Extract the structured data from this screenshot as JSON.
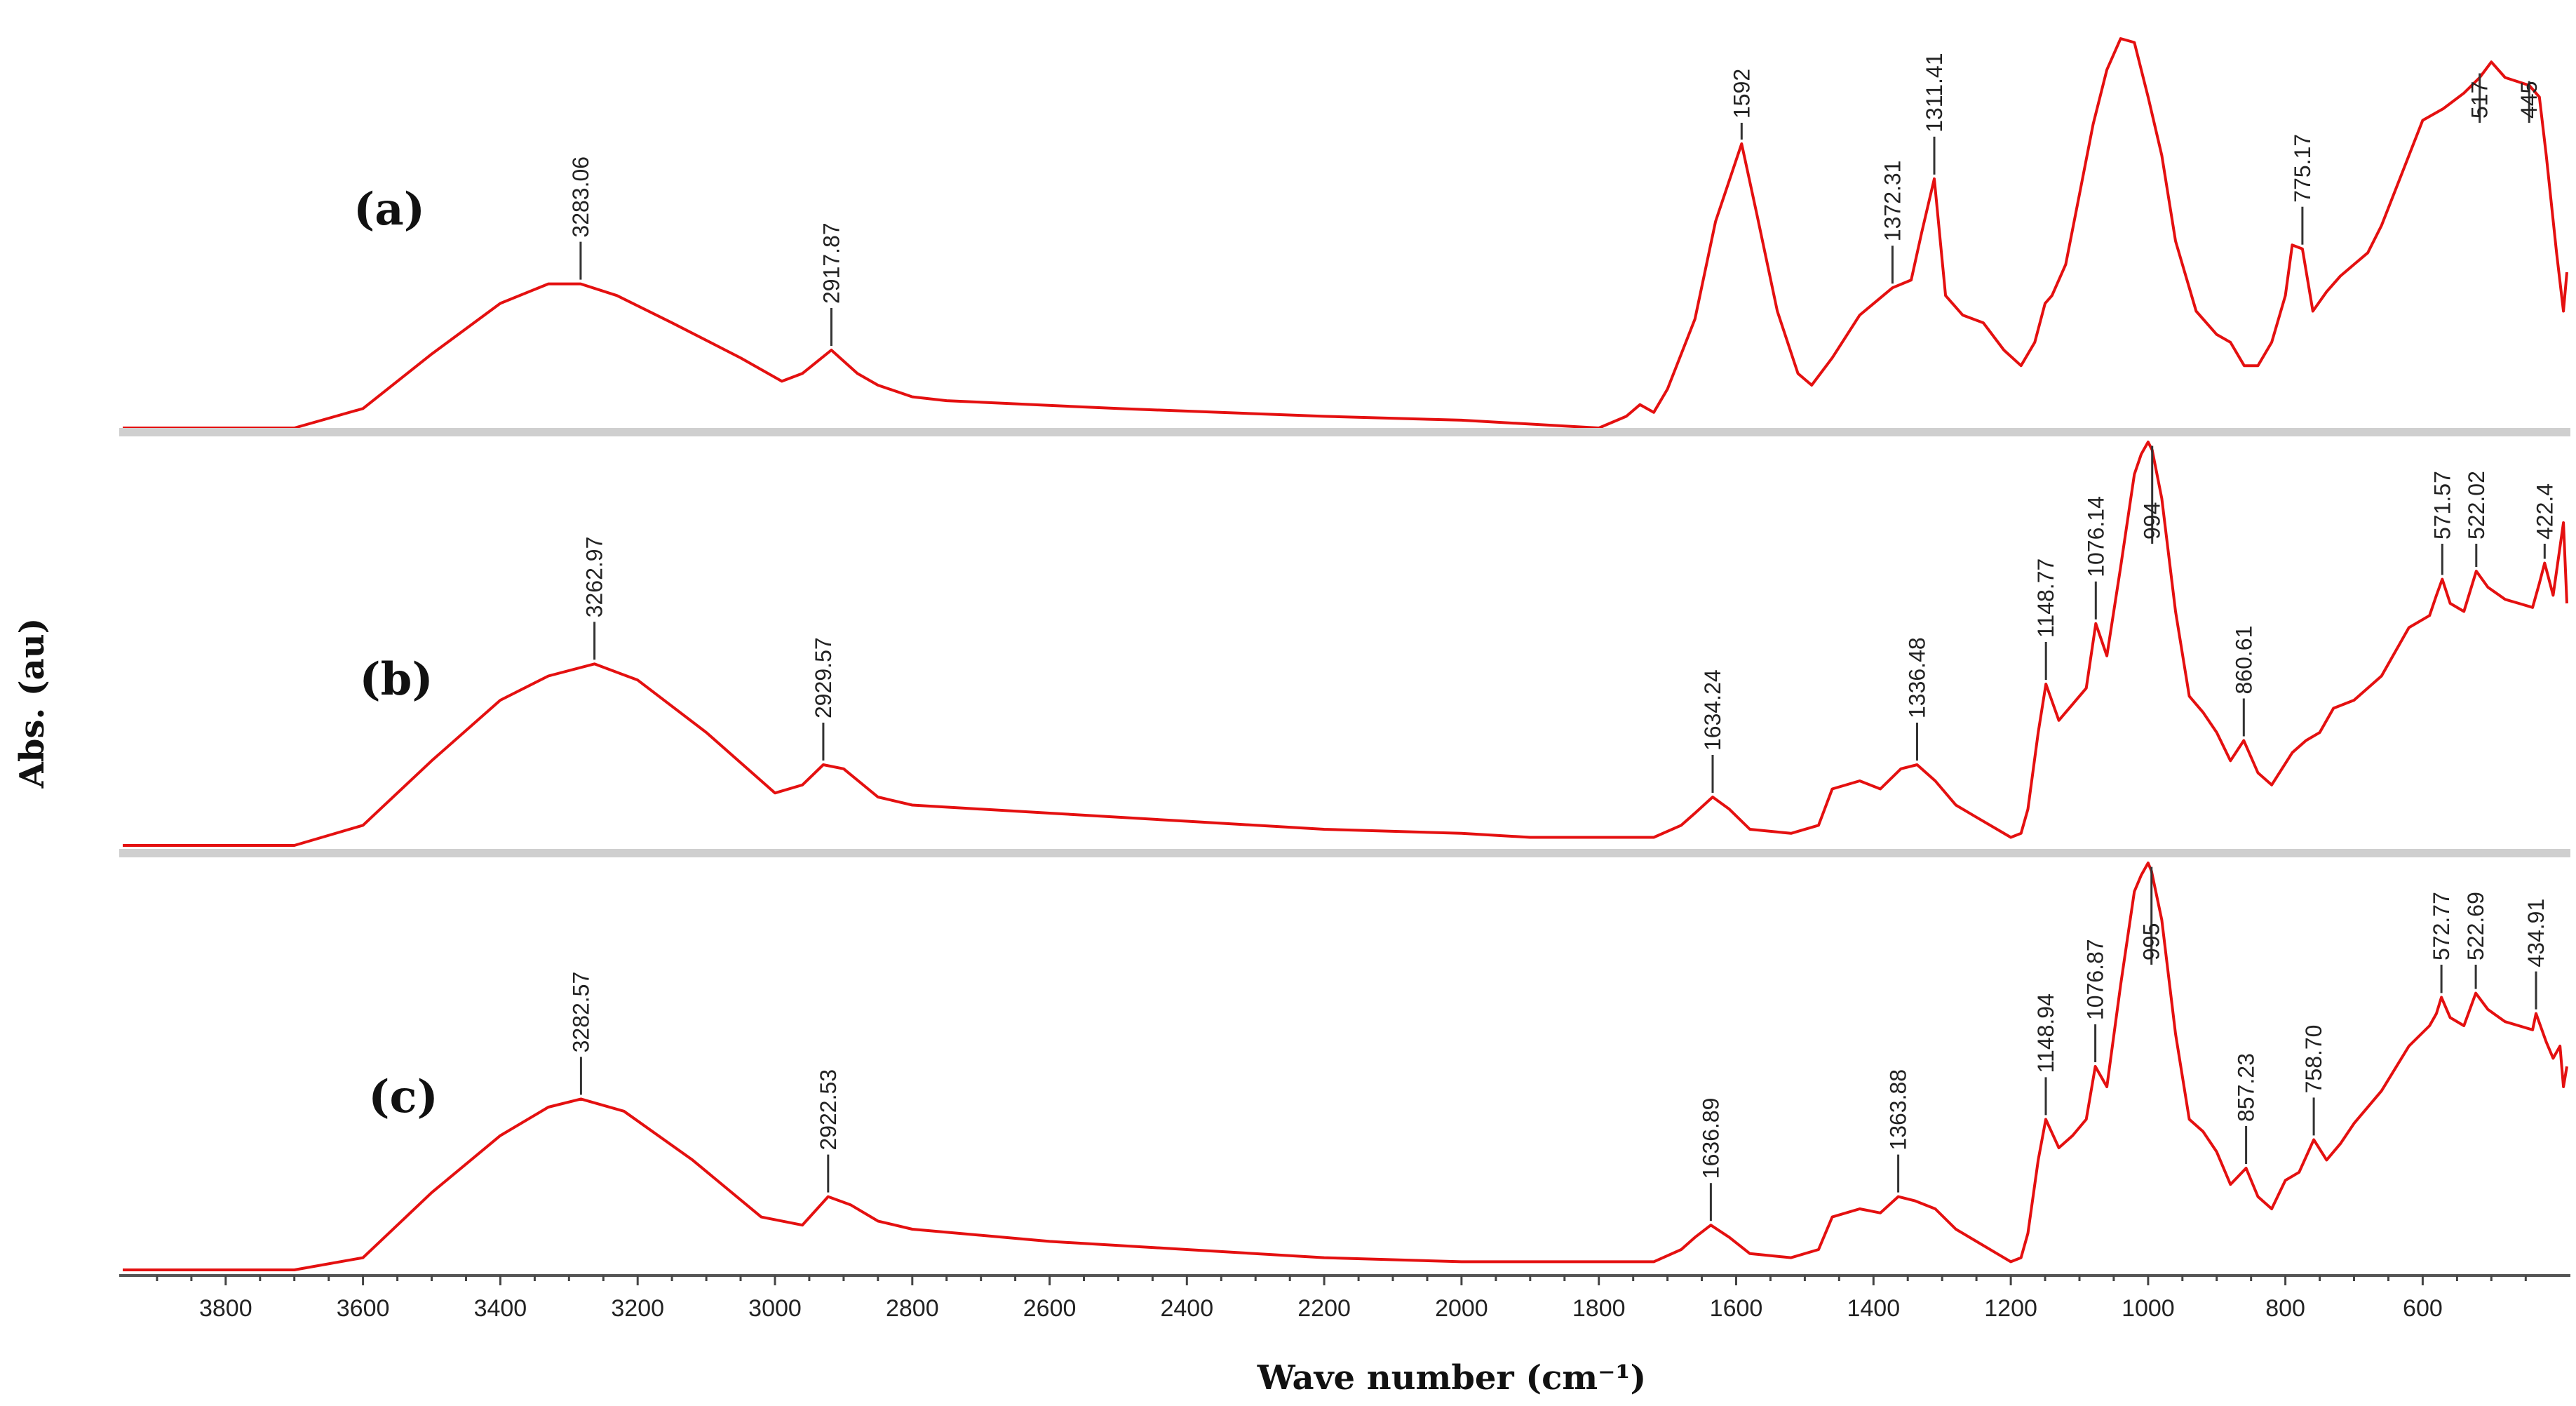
{
  "chart_data": {
    "type": "line",
    "title": "",
    "xlabel": "Wave number (cm⁻¹)",
    "ylabel": "Abs. (au)",
    "x_reversed": true,
    "xlim": [
      3950,
      390
    ],
    "x_ticks": [
      3800,
      3600,
      3400,
      3200,
      3000,
      2800,
      2600,
      2400,
      2200,
      2000,
      1800,
      1600,
      1400,
      1200,
      1000,
      800,
      600
    ],
    "x_tick_labels": [
      "3800",
      "3600",
      "3400",
      "3200",
      "3000",
      "2800",
      "2600",
      "2400",
      "2200",
      "2000",
      "1800",
      "1600",
      "1400",
      "1200",
      "1000",
      "800",
      "600"
    ],
    "color": "#e41010",
    "series": [
      {
        "name": "(a)",
        "label": "(a)",
        "x": [
          3950,
          3700,
          3600,
          3500,
          3400,
          3330,
          3283,
          3230,
          3150,
          3050,
          2990,
          2960,
          2917.87,
          2880,
          2850,
          2800,
          2750,
          2500,
          2200,
          2000,
          1800,
          1760,
          1740,
          1720,
          1700,
          1660,
          1630,
          1592,
          1570,
          1540,
          1510,
          1490,
          1460,
          1420,
          1372.31,
          1345,
          1330,
          1311.41,
          1295,
          1270,
          1240,
          1210,
          1185,
          1165,
          1150,
          1140,
          1120,
          1100,
          1080,
          1060,
          1040,
          1020,
          1000,
          980,
          960,
          930,
          900,
          880,
          860,
          840,
          820,
          800,
          790,
          775.17,
          760,
          740,
          720,
          700,
          680,
          660,
          640,
          600,
          570,
          540,
          517,
          500,
          480,
          445,
          430,
          420,
          405,
          395,
          390
        ],
        "y": [
          0.0,
          0.0,
          0.05,
          0.19,
          0.32,
          0.37,
          0.37,
          0.34,
          0.27,
          0.18,
          0.12,
          0.14,
          0.2,
          0.14,
          0.11,
          0.08,
          0.07,
          0.05,
          0.03,
          0.02,
          0.0,
          0.03,
          0.06,
          0.04,
          0.1,
          0.28,
          0.53,
          0.73,
          0.55,
          0.3,
          0.14,
          0.11,
          0.18,
          0.29,
          0.36,
          0.38,
          0.5,
          0.64,
          0.34,
          0.29,
          0.27,
          0.2,
          0.16,
          0.22,
          0.32,
          0.34,
          0.42,
          0.6,
          0.78,
          0.92,
          1.0,
          0.99,
          0.85,
          0.7,
          0.48,
          0.3,
          0.24,
          0.22,
          0.16,
          0.16,
          0.22,
          0.34,
          0.47,
          0.46,
          0.3,
          0.35,
          0.39,
          0.42,
          0.45,
          0.52,
          0.61,
          0.79,
          0.82,
          0.86,
          0.9,
          0.94,
          0.9,
          0.88,
          0.85,
          0.7,
          0.45,
          0.3,
          0.4
        ],
        "peaks": [
          {
            "label": "3283.06",
            "x": 3283
          },
          {
            "label": "2917.87",
            "x": 2917.87
          },
          {
            "label": "1592",
            "x": 1592
          },
          {
            "label": "1372.31",
            "x": 1372.31
          },
          {
            "label": "1311.41",
            "x": 1311.41
          },
          {
            "label": "775.17",
            "x": 775.17
          },
          {
            "label": "517",
            "x": 517
          },
          {
            "label": "445",
            "x": 445
          }
        ]
      },
      {
        "name": "(b)",
        "label": "(b)",
        "x": [
          3950,
          3700,
          3600,
          3500,
          3400,
          3330,
          3262.97,
          3200,
          3100,
          3000,
          2960,
          2929.57,
          2900,
          2850,
          2800,
          2600,
          2400,
          2200,
          2000,
          1900,
          1800,
          1720,
          1680,
          1660,
          1634.24,
          1610,
          1580,
          1520,
          1480,
          1460,
          1420,
          1390,
          1360,
          1336.48,
          1310,
          1280,
          1250,
          1220,
          1200,
          1185,
          1175,
          1160,
          1148.77,
          1130,
          1110,
          1090,
          1076.14,
          1060,
          1040,
          1020,
          1010,
          1000,
          994,
          980,
          960,
          940,
          920,
          900,
          880,
          860.61,
          840,
          820,
          790,
          770,
          750,
          730,
          700,
          660,
          620,
          590,
          580,
          571.57,
          560,
          540,
          522.02,
          505,
          480,
          460,
          440,
          430,
          422.4,
          410,
          400,
          395,
          390
        ],
        "y": [
          0.0,
          0.0,
          0.05,
          0.21,
          0.36,
          0.42,
          0.45,
          0.41,
          0.28,
          0.13,
          0.15,
          0.2,
          0.19,
          0.12,
          0.1,
          0.08,
          0.06,
          0.04,
          0.03,
          0.02,
          0.02,
          0.02,
          0.05,
          0.08,
          0.12,
          0.09,
          0.04,
          0.03,
          0.05,
          0.14,
          0.16,
          0.14,
          0.19,
          0.2,
          0.16,
          0.1,
          0.07,
          0.04,
          0.02,
          0.03,
          0.09,
          0.28,
          0.4,
          0.31,
          0.35,
          0.39,
          0.55,
          0.47,
          0.69,
          0.92,
          0.97,
          1.0,
          0.98,
          0.86,
          0.58,
          0.37,
          0.33,
          0.28,
          0.21,
          0.26,
          0.18,
          0.15,
          0.23,
          0.26,
          0.28,
          0.34,
          0.36,
          0.42,
          0.54,
          0.57,
          0.62,
          0.66,
          0.6,
          0.58,
          0.68,
          0.64,
          0.61,
          0.6,
          0.59,
          0.65,
          0.7,
          0.62,
          0.74,
          0.8,
          0.6
        ],
        "peaks": [
          {
            "label": "3262.97",
            "x": 3262.97
          },
          {
            "label": "2929.57",
            "x": 2929.57
          },
          {
            "label": "1634.24",
            "x": 1634.24
          },
          {
            "label": "1336.48",
            "x": 1336.48
          },
          {
            "label": "1148.77",
            "x": 1148.77
          },
          {
            "label": "1076.14",
            "x": 1076.14
          },
          {
            "label": "994",
            "x": 994
          },
          {
            "label": "860.61",
            "x": 860.61
          },
          {
            "label": "571.57",
            "x": 571.57
          },
          {
            "label": "522.02",
            "x": 522.02
          },
          {
            "label": "422.4",
            "x": 422.4
          }
        ]
      },
      {
        "name": "(c)",
        "label": "(c)",
        "x": [
          3950,
          3700,
          3600,
          3500,
          3400,
          3330,
          3282.57,
          3220,
          3120,
          3020,
          2960,
          2922.53,
          2890,
          2850,
          2800,
          2600,
          2400,
          2200,
          2000,
          1900,
          1800,
          1720,
          1680,
          1660,
          1636.89,
          1610,
          1580,
          1520,
          1480,
          1460,
          1420,
          1390,
          1363.88,
          1340,
          1310,
          1280,
          1250,
          1220,
          1200,
          1185,
          1175,
          1160,
          1148.94,
          1130,
          1110,
          1090,
          1076.87,
          1060,
          1040,
          1020,
          1010,
          1000,
          995,
          980,
          960,
          940,
          920,
          900,
          880,
          857.23,
          840,
          820,
          800,
          780,
          758.7,
          740,
          720,
          700,
          660,
          620,
          590,
          580,
          572.77,
          560,
          540,
          522.69,
          505,
          480,
          460,
          440,
          434.91,
          420,
          410,
          400,
          395,
          390
        ],
        "y": [
          0.0,
          0.0,
          0.03,
          0.19,
          0.33,
          0.4,
          0.42,
          0.39,
          0.27,
          0.13,
          0.11,
          0.18,
          0.16,
          0.12,
          0.1,
          0.07,
          0.05,
          0.03,
          0.02,
          0.02,
          0.02,
          0.02,
          0.05,
          0.08,
          0.11,
          0.08,
          0.04,
          0.03,
          0.05,
          0.13,
          0.15,
          0.14,
          0.18,
          0.17,
          0.15,
          0.1,
          0.07,
          0.04,
          0.02,
          0.03,
          0.09,
          0.27,
          0.37,
          0.3,
          0.33,
          0.37,
          0.5,
          0.45,
          0.7,
          0.93,
          0.97,
          1.0,
          0.98,
          0.86,
          0.58,
          0.37,
          0.34,
          0.29,
          0.21,
          0.25,
          0.18,
          0.15,
          0.22,
          0.24,
          0.32,
          0.27,
          0.31,
          0.36,
          0.44,
          0.55,
          0.6,
          0.63,
          0.67,
          0.62,
          0.6,
          0.68,
          0.64,
          0.61,
          0.6,
          0.59,
          0.63,
          0.56,
          0.52,
          0.55,
          0.45,
          0.5
        ],
        "peaks": [
          {
            "label": "3282.57",
            "x": 3282.57
          },
          {
            "label": "2922.53",
            "x": 2922.53
          },
          {
            "label": "1636.89",
            "x": 1636.89
          },
          {
            "label": "1363.88",
            "x": 1363.88
          },
          {
            "label": "1148.94",
            "x": 1148.94
          },
          {
            "label": "1076.87",
            "x": 1076.87
          },
          {
            "label": "995",
            "x": 995
          },
          {
            "label": "857.23",
            "x": 857.23
          },
          {
            "label": "758.70",
            "x": 758.7
          },
          {
            "label": "572.77",
            "x": 572.77
          },
          {
            "label": "522.69",
            "x": 522.69
          },
          {
            "label": "434.91",
            "x": 434.91
          }
        ]
      }
    ]
  }
}
